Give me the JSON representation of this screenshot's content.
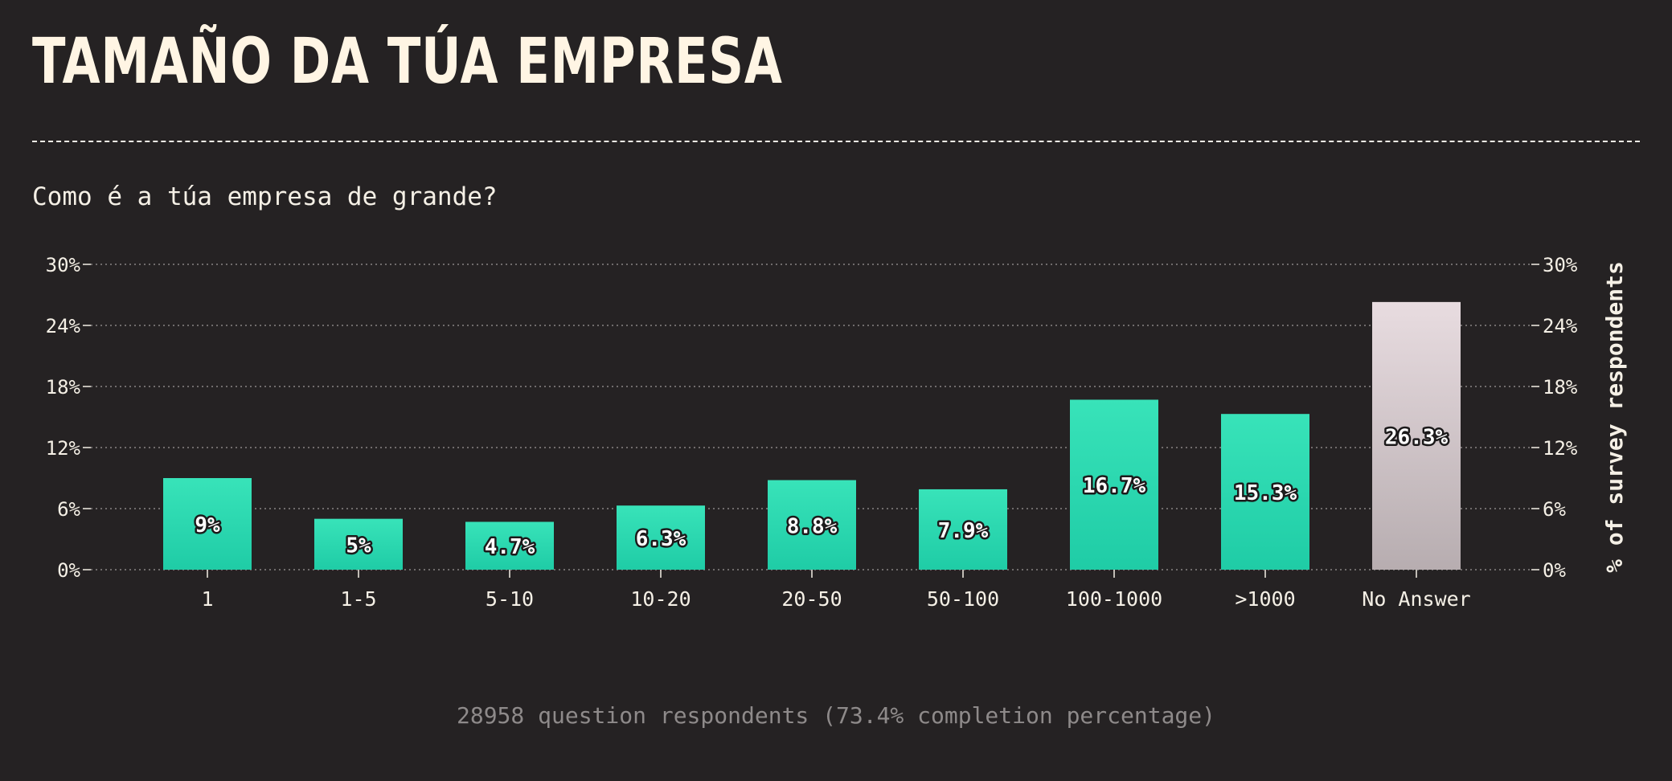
{
  "title": "TAMAÑO DA TÚA EMPRESA",
  "question": "Como é a túa empresa de grande?",
  "footer": "28958 question respondents (73.4% completion percentage)",
  "colors": {
    "background": "#252223",
    "text": "#f5f0e6",
    "bar_top": "#38e3b9",
    "bar_bottom": "#1fcca6",
    "na_top": "#e8dce0",
    "na_bottom": "#b7adb0",
    "grid": "#8a8585",
    "footer": "#8e8a8a"
  },
  "chart_data": {
    "type": "bar",
    "categories": [
      "1",
      "1-5",
      "5-10",
      "10-20",
      "20-50",
      "50-100",
      "100-1000",
      ">1000",
      "No Answer"
    ],
    "values": [
      9,
      5,
      4.7,
      6.3,
      8.8,
      7.9,
      16.7,
      15.3,
      26.3
    ],
    "value_labels": [
      "9%",
      "5%",
      "4.7%",
      "6.3%",
      "8.8%",
      "7.9%",
      "16.7%",
      "15.3%",
      "26.3%"
    ],
    "highlight_category": "No Answer",
    "ylim": [
      0,
      30
    ],
    "yticks": [
      0,
      6,
      12,
      18,
      24,
      30
    ],
    "ytick_labels": [
      "0%",
      "6%",
      "12%",
      "18%",
      "24%",
      "30%"
    ],
    "ylabel_right": "% of survey respondents",
    "grid": true
  }
}
